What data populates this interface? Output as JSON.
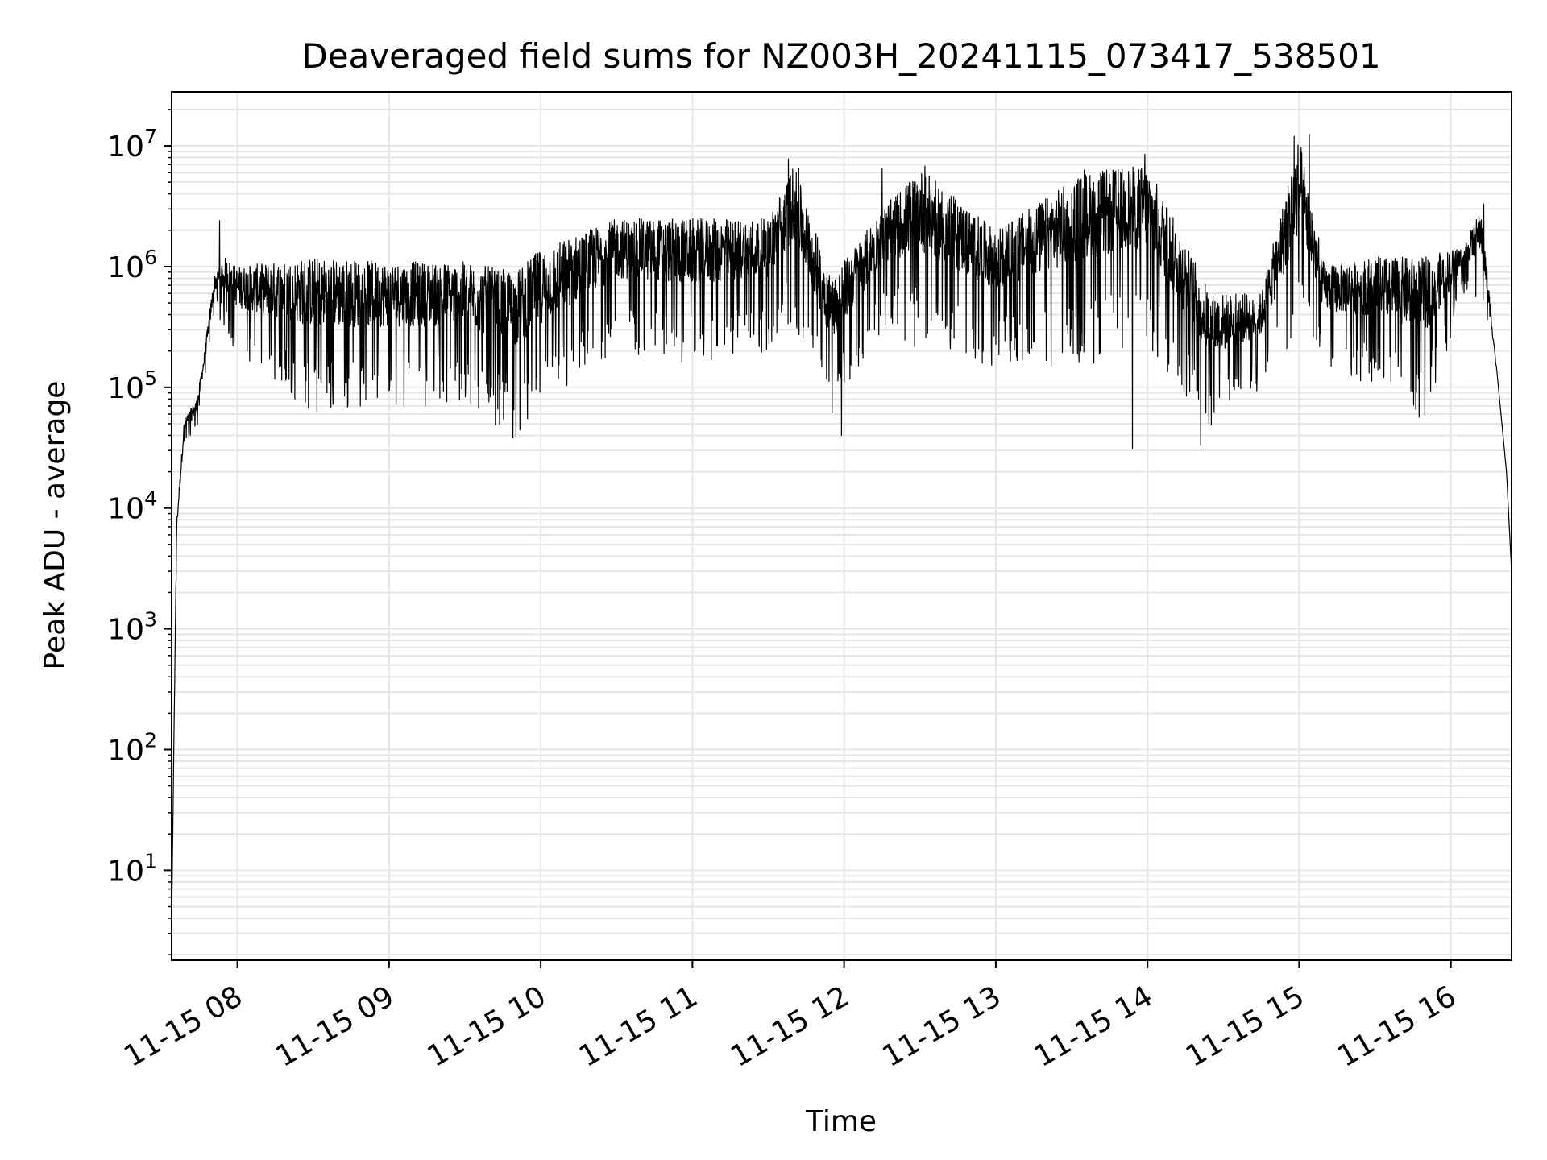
{
  "chart_data": {
    "type": "line",
    "title": "Deaveraged field sums for NZ003H_20241115_073417_538501",
    "xlabel": "Time",
    "ylabel": "Peak ADU - average",
    "y_scale": "log",
    "grid": true,
    "grid_minor_y": true,
    "line_color": "#000000",
    "grid_color": "#e6e6e6",
    "x_range": [
      "2024-11-15 07:34",
      "2024-11-15 16:24"
    ],
    "y_range": [
      1.8,
      28000000
    ],
    "x_ticks": [
      {
        "time": "2024-11-15 08:00",
        "label": "11-15 08"
      },
      {
        "time": "2024-11-15 09:00",
        "label": "11-15 09"
      },
      {
        "time": "2024-11-15 10:00",
        "label": "11-15 10"
      },
      {
        "time": "2024-11-15 11:00",
        "label": "11-15 11"
      },
      {
        "time": "2024-11-15 12:00",
        "label": "11-15 12"
      },
      {
        "time": "2024-11-15 13:00",
        "label": "11-15 13"
      },
      {
        "time": "2024-11-15 14:00",
        "label": "11-15 14"
      },
      {
        "time": "2024-11-15 15:00",
        "label": "11-15 15"
      },
      {
        "time": "2024-11-15 16:00",
        "label": "11-15 16"
      }
    ],
    "y_ticks": [
      {
        "value": 10,
        "base": "10",
        "exp": "1"
      },
      {
        "value": 100,
        "base": "10",
        "exp": "2"
      },
      {
        "value": 1000,
        "base": "10",
        "exp": "3"
      },
      {
        "value": 10000,
        "base": "10",
        "exp": "4"
      },
      {
        "value": 100000,
        "base": "10",
        "exp": "5"
      },
      {
        "value": 1000000,
        "base": "10",
        "exp": "6"
      },
      {
        "value": 10000000,
        "base": "10",
        "exp": "7"
      }
    ],
    "series": [
      {
        "envelope": [
          {
            "time": "2024-11-15 07:34",
            "low": 3.8,
            "high": 3.8
          },
          {
            "time": "2024-11-15 07:36",
            "low": 5000,
            "high": 8000
          },
          {
            "time": "2024-11-15 07:39",
            "low": 32000,
            "high": 55000
          },
          {
            "time": "2024-11-15 07:44",
            "low": 45000,
            "high": 80000
          },
          {
            "time": "2024-11-15 07:47",
            "low": 110000,
            "high": 200000
          },
          {
            "time": "2024-11-15 07:51",
            "low": 400000,
            "high": 900000
          },
          {
            "time": "2024-11-15 07:55",
            "low": 300000,
            "high": 1200000
          },
          {
            "time": "2024-11-15 08:00",
            "low": 180000,
            "high": 1000000
          },
          {
            "time": "2024-11-15 08:30",
            "low": 60000,
            "high": 1200000
          },
          {
            "time": "2024-11-15 09:00",
            "low": 70000,
            "high": 1100000
          },
          {
            "time": "2024-11-15 09:30",
            "low": 70000,
            "high": 1100000
          },
          {
            "time": "2024-11-15 09:50",
            "low": 38000,
            "high": 900000
          },
          {
            "time": "2024-11-15 10:00",
            "low": 60000,
            "high": 1400000
          },
          {
            "time": "2024-11-15 10:30",
            "low": 200000,
            "high": 2500000
          },
          {
            "time": "2024-11-15 11:00",
            "low": 150000,
            "high": 2500000
          },
          {
            "time": "2024-11-15 11:30",
            "low": 200000,
            "high": 2500000
          },
          {
            "time": "2024-11-15 11:40",
            "low": 300000,
            "high": 7000000
          },
          {
            "time": "2024-11-15 11:55",
            "low": 60000,
            "high": 800000
          },
          {
            "time": "2024-11-15 12:15",
            "low": 300000,
            "high": 3000000
          },
          {
            "time": "2024-11-15 12:30",
            "low": 200000,
            "high": 6500000
          },
          {
            "time": "2024-11-15 13:00",
            "low": 150000,
            "high": 2000000
          },
          {
            "time": "2024-11-15 13:35",
            "low": 150000,
            "high": 6000000
          },
          {
            "time": "2024-11-15 14:00",
            "low": 200000,
            "high": 7000000
          },
          {
            "time": "2024-11-15 14:25",
            "low": 40000,
            "high": 600000
          },
          {
            "time": "2024-11-15 14:45",
            "low": 100000,
            "high": 600000
          },
          {
            "time": "2024-11-15 15:00",
            "low": 200000,
            "high": 12000000
          },
          {
            "time": "2024-11-15 15:10",
            "low": 150000,
            "high": 1000000
          },
          {
            "time": "2024-11-15 15:30",
            "low": 100000,
            "high": 1200000
          },
          {
            "time": "2024-11-15 15:50",
            "low": 50000,
            "high": 1200000
          },
          {
            "time": "2024-11-15 16:05",
            "low": 600000,
            "high": 1500000
          },
          {
            "time": "2024-11-15 16:12",
            "low": 500000,
            "high": 3000000
          },
          {
            "time": "2024-11-15 16:18",
            "low": 150000,
            "high": 150000
          },
          {
            "time": "2024-11-15 16:22",
            "low": 20000,
            "high": 20000
          },
          {
            "time": "2024-11-15 16:24",
            "low": 3000,
            "high": 3000
          }
        ],
        "spikes": [
          {
            "time": "2024-11-15 07:53",
            "value": 2400000
          },
          {
            "time": "2024-11-15 11:38",
            "value": 7800000
          },
          {
            "time": "2024-11-15 11:42",
            "value": 6500000
          },
          {
            "time": "2024-11-15 12:15",
            "value": 6500000
          },
          {
            "time": "2024-11-15 12:32",
            "value": 6800000
          },
          {
            "time": "2024-11-15 13:35",
            "value": 6300000
          },
          {
            "time": "2024-11-15 13:59",
            "value": 8500000
          },
          {
            "time": "2024-11-15 14:58",
            "value": 12000000
          },
          {
            "time": "2024-11-15 15:04",
            "value": 12500000
          },
          {
            "time": "2024-11-15 16:13",
            "value": 3300000
          },
          {
            "time": "2024-11-15 13:54",
            "value": 31000
          },
          {
            "time": "2024-11-15 14:21",
            "value": 33000
          },
          {
            "time": "2024-11-15 11:59",
            "value": 40000
          },
          {
            "time": "2024-11-15 09:49",
            "value": 38000
          }
        ]
      }
    ]
  }
}
